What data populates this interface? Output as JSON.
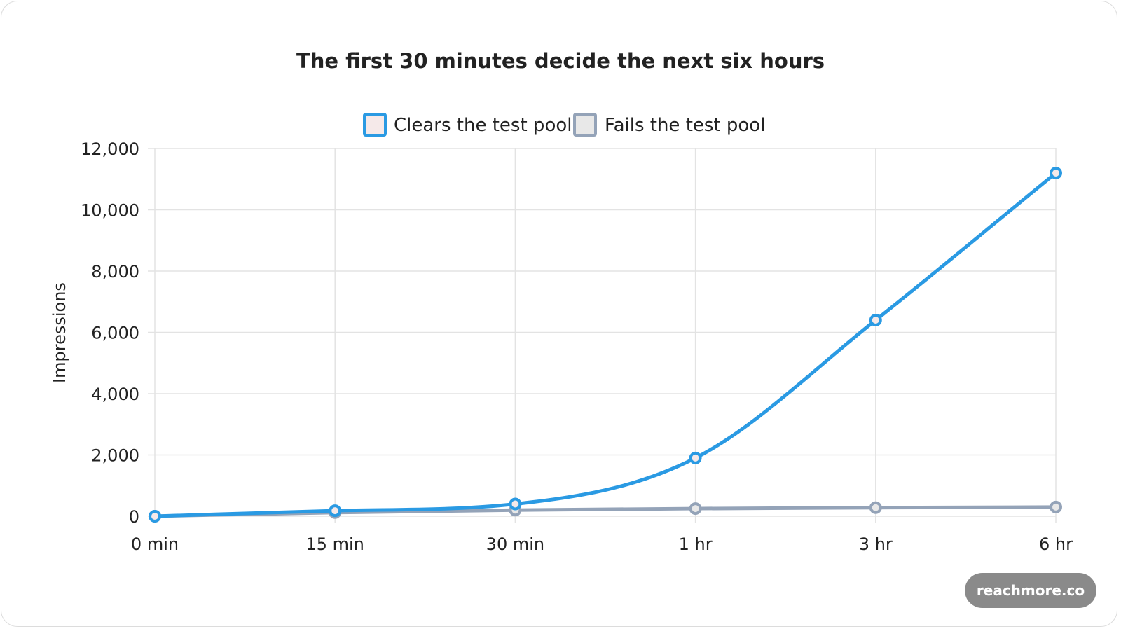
{
  "watermark": "reachmore.co",
  "chart_data": {
    "type": "line",
    "title": "The first 30 minutes decide the next six hours",
    "xlabel": "",
    "ylabel": "Impressions",
    "categories": [
      "0 min",
      "15 min",
      "30 min",
      "1 hr",
      "3 hr",
      "6 hr"
    ],
    "ylim": [
      0,
      12000
    ],
    "yticks": [
      0,
      2000,
      4000,
      6000,
      8000,
      10000,
      12000
    ],
    "ytick_labels": [
      "0",
      "2,000",
      "4,000",
      "6,000",
      "8,000",
      "10,000",
      "12,000"
    ],
    "grid": true,
    "legend_position": "top-center",
    "series": [
      {
        "name": "Clears the test pool",
        "values": [
          0,
          180,
          400,
          1900,
          6400,
          11200
        ],
        "color": "#2a9ae3",
        "fill": "#f5e9e9"
      },
      {
        "name": "Fails the test pool",
        "values": [
          0,
          120,
          200,
          250,
          280,
          300
        ],
        "color": "#94a3b8",
        "fill": "#e8e8e8"
      }
    ]
  }
}
